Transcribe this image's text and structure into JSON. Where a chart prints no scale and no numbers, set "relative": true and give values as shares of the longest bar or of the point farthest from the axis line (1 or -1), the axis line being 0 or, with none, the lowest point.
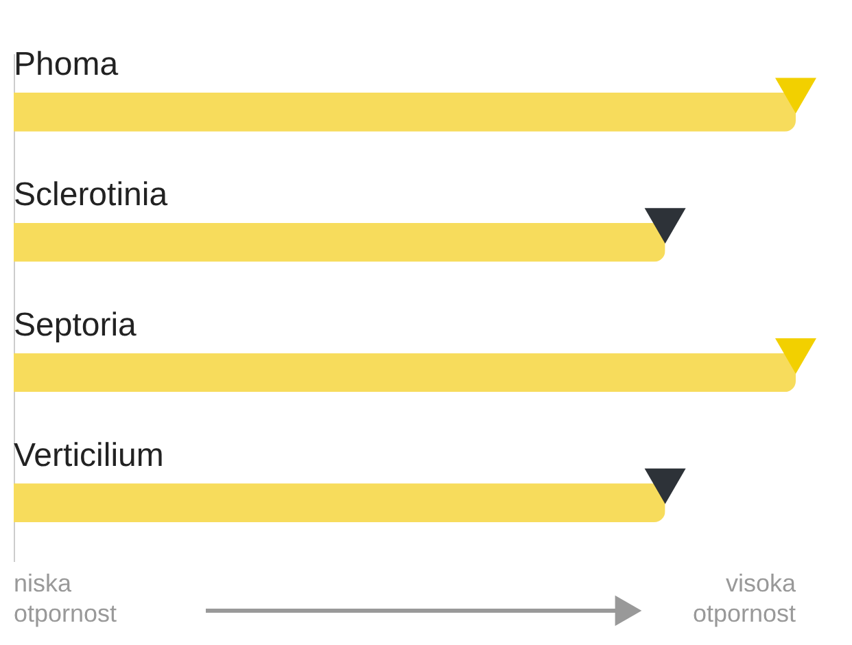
{
  "chart_data": {
    "type": "bar",
    "orientation": "horizontal",
    "relative": true,
    "categories": [
      "Phoma",
      "Sclerotinia",
      "Septoria",
      "Verticilium"
    ],
    "series": [
      {
        "color": "#f7dc5c",
        "values": [
          1,
          0.833,
          1,
          0.833
        ]
      },
      {
        "type": "scatter",
        "colors": [
          "#f2d000",
          "#2d3238",
          "#f2d000",
          "#2d3238"
        ],
        "values": [
          1,
          0.833,
          1,
          0.833
        ]
      }
    ],
    "marker": "triangle",
    "grid": false,
    "annotations": [
      "niska\notpornost",
      "visoka\notpornost"
    ]
  }
}
